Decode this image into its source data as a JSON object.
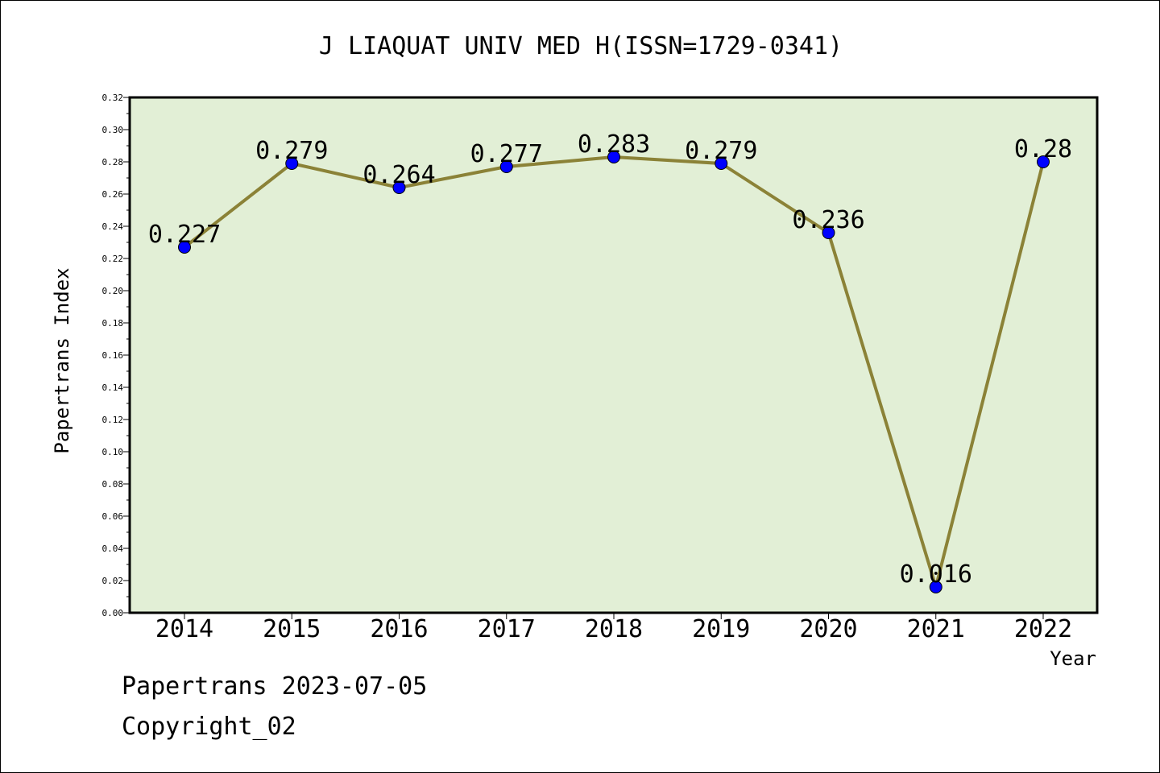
{
  "chart_data": {
    "type": "line",
    "title": "J LIAQUAT UNIV MED H(ISSN=1729-0341)",
    "xlabel": "Year",
    "ylabel": "Papertrans Index",
    "categories": [
      "2014",
      "2015",
      "2016",
      "2017",
      "2018",
      "2019",
      "2020",
      "2021",
      "2022"
    ],
    "series": [
      {
        "values": [
          0.227,
          0.279,
          0.264,
          0.277,
          0.283,
          0.279,
          0.236,
          0.016,
          0.28
        ],
        "labels": [
          "0.227",
          "0.279",
          "0.264",
          "0.277",
          "0.283",
          "0.279",
          "0.236",
          "0.016",
          "0.28"
        ]
      }
    ],
    "ylim": [
      0,
      0.32
    ],
    "yticks": [
      "0.00",
      "0.02",
      "0.04",
      "0.06",
      "0.08",
      "0.10",
      "0.12",
      "0.14",
      "0.16",
      "0.18",
      "0.20",
      "0.22",
      "0.24",
      "0.26",
      "0.28",
      "0.30",
      "0.32"
    ],
    "grid": false,
    "colors": {
      "plot_background": "#e2efd6",
      "line": "#8b8237",
      "marker": "#0000ff"
    }
  },
  "footer": {
    "source": "Papertrans 2023-07-05",
    "copyright": "Copyright_02"
  }
}
